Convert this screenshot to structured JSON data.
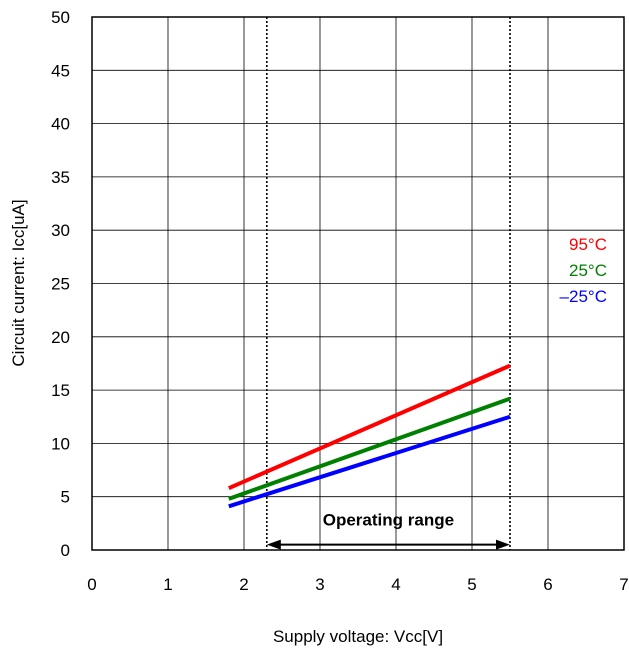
{
  "chart_data": {
    "type": "line",
    "title": "",
    "xlabel": "Supply voltage: Vcc[V]",
    "ylabel": "Circuit current: Icc[uA]",
    "xlim": [
      0,
      7
    ],
    "ylim": [
      0,
      50
    ],
    "x_ticks": [
      "0",
      "1",
      "2",
      "3",
      "4",
      "5",
      "6",
      "7"
    ],
    "y_ticks": [
      "0",
      "5",
      "10",
      "15",
      "20",
      "25",
      "30",
      "35",
      "40",
      "45",
      "50"
    ],
    "grid": true,
    "legend_position": "right",
    "series": [
      {
        "name": "95°C",
        "color": "#ff0000",
        "x": [
          1.8,
          5.5
        ],
        "y": [
          5.8,
          17.3
        ]
      },
      {
        "name": "25°C",
        "color": "#008000",
        "x": [
          1.8,
          5.5
        ],
        "y": [
          4.8,
          14.2
        ]
      },
      {
        "name": "–25°C",
        "color": "#0000ff",
        "x": [
          1.8,
          5.5
        ],
        "y": [
          4.1,
          12.5
        ]
      }
    ],
    "operating_range": {
      "label": "Operating range",
      "x": [
        2.3,
        5.5
      ]
    }
  }
}
